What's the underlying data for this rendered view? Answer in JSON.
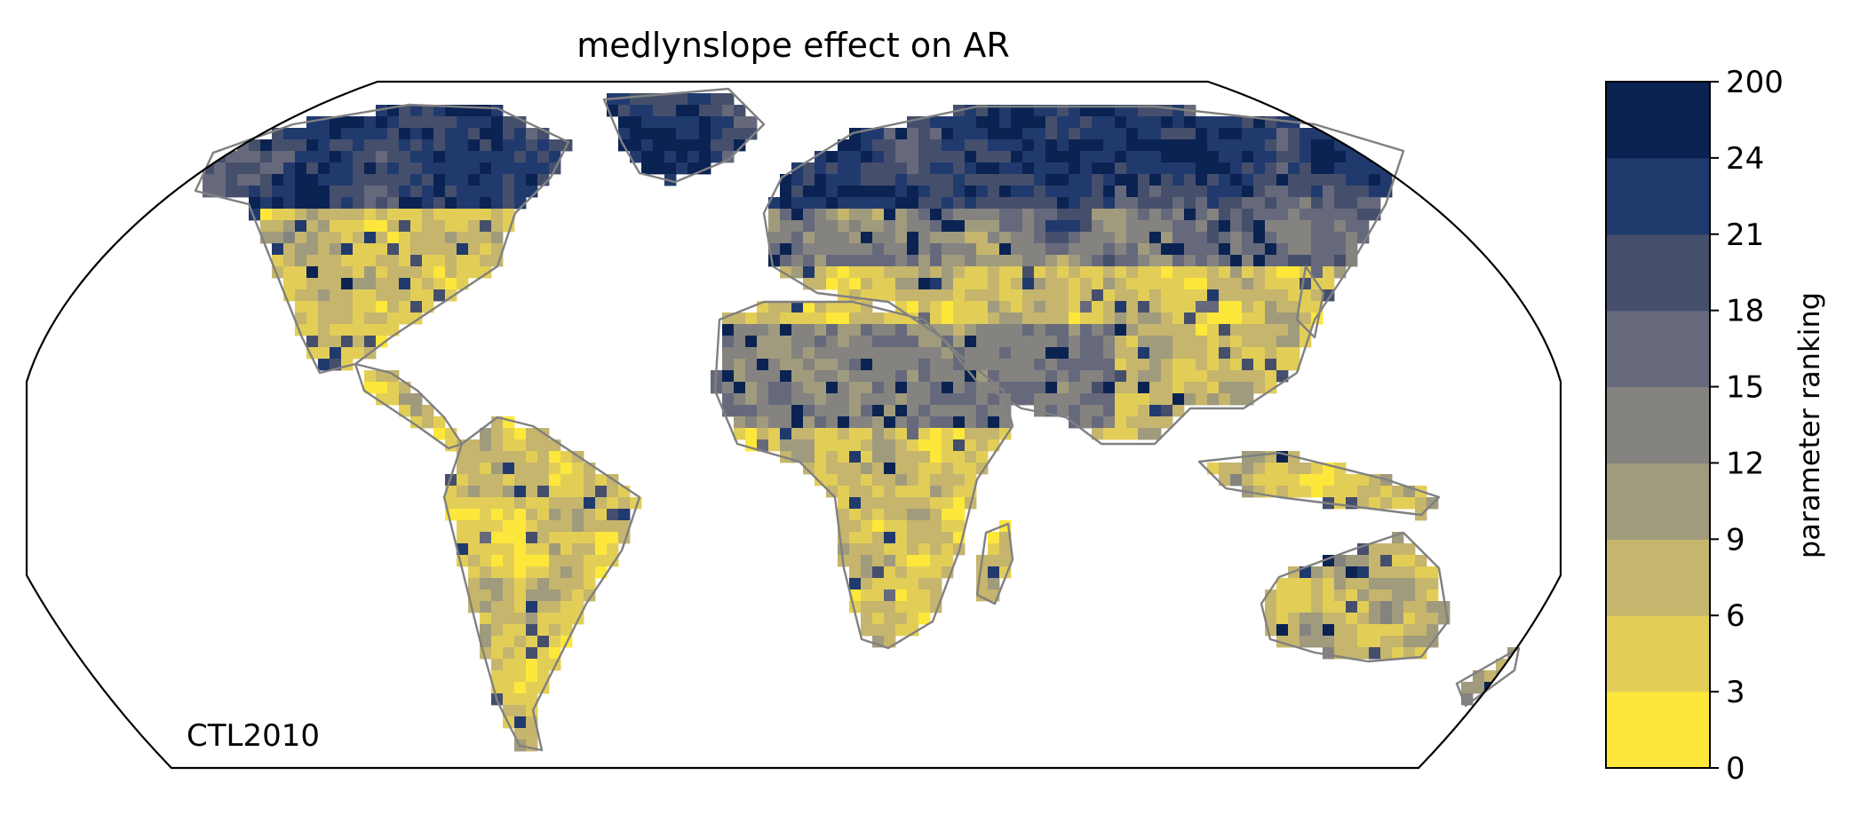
{
  "title": "medlynslope effect on AR",
  "panel_label": "CTL2010",
  "colorbar": {
    "label": "parameter ranking",
    "ticks": [
      "0",
      "3",
      "6",
      "9",
      "12",
      "15",
      "18",
      "21",
      "24",
      "200"
    ],
    "colors": [
      "#fde73a",
      "#e2ce57",
      "#c5b56d",
      "#a09b7d",
      "#848380",
      "#66697b",
      "#454f6c",
      "#213a6e",
      "#0b2352"
    ]
  },
  "map_colors": {
    "coastline": "#808080",
    "frame": "#000000"
  }
}
